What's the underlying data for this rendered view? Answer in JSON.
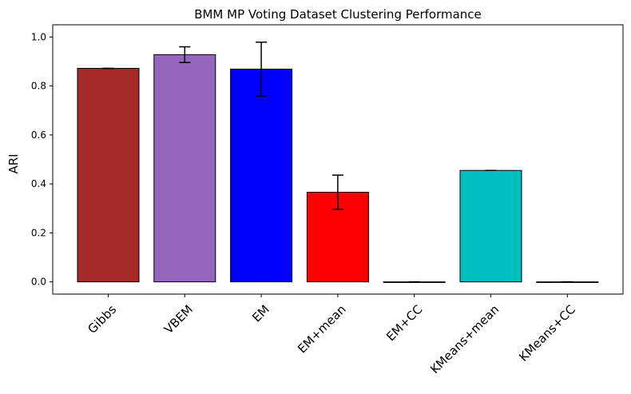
{
  "chart_data": {
    "type": "bar",
    "title": "BMM MP Voting Dataset Clustering Performance",
    "xlabel": "",
    "ylabel": "ARI",
    "categories": [
      "Gibbs",
      "VBEM",
      "EM",
      "EM+mean",
      "EM+CC",
      "KMeans+mean",
      "KMeans+CC"
    ],
    "values": [
      0.872,
      0.928,
      0.869,
      0.366,
      0.0,
      0.455,
      0.0
    ],
    "errors": [
      0.0,
      0.032,
      0.11,
      0.07,
      0.0,
      0.0,
      0.0
    ],
    "colors": [
      "#a52a2a",
      "#9467bd",
      "#0000ff",
      "#ff0000",
      "#ffffff",
      "#00bfbf",
      "#ffffff"
    ],
    "ylim": [
      -0.05,
      1.05
    ],
    "yticks": [
      0.0,
      0.2,
      0.4,
      0.6,
      0.8,
      1.0
    ],
    "ytick_labels": [
      "0.0",
      "0.2",
      "0.4",
      "0.6",
      "0.8",
      "1.0"
    ],
    "grid": false,
    "legend": "none"
  }
}
